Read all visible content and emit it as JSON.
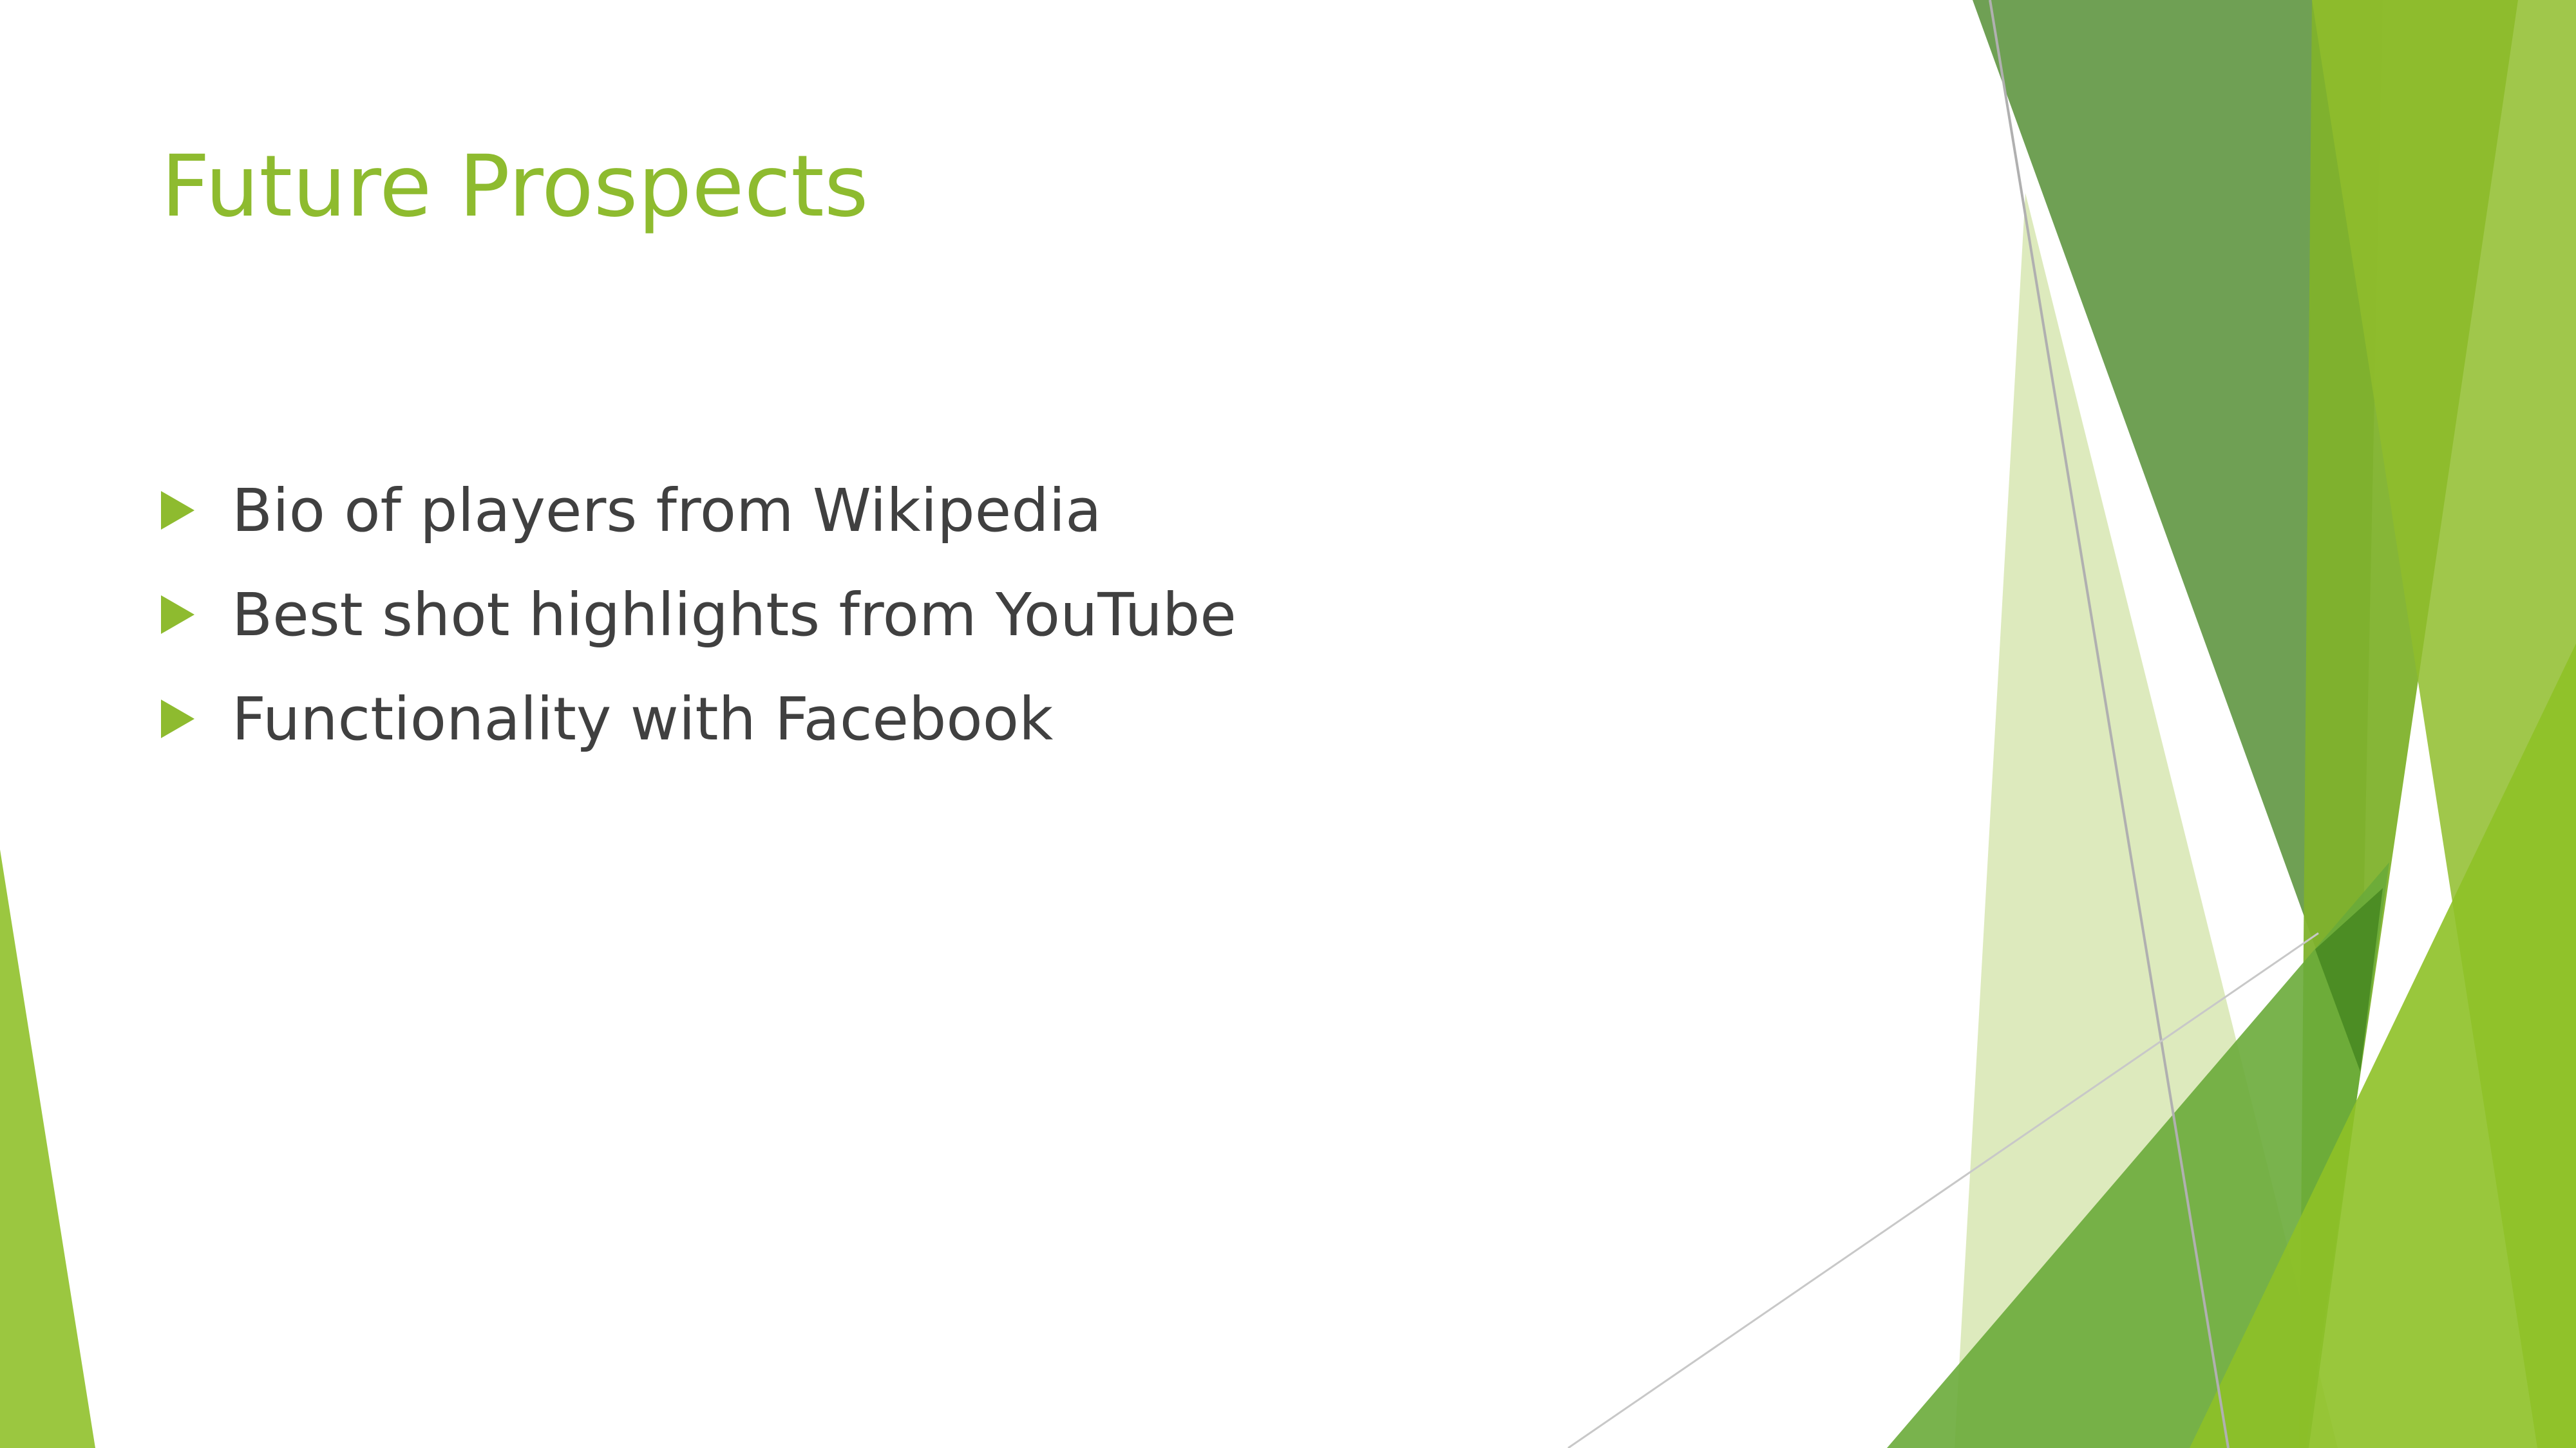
{
  "slide": {
    "title": "Future Prospects",
    "bullets": [
      "Bio of players from Wikipedia",
      "Best shot highlights from YouTube",
      "Functionality with Facebook"
    ]
  },
  "colors": {
    "title": "#8ebb2f",
    "body_text": "#404040",
    "accent_light": "#a0c844",
    "accent_mid": "#6e9f44",
    "accent_dark": "#4c8d24",
    "accent_pale": "#dde9bc"
  },
  "icons": {
    "bullet": "triangle-right-icon"
  }
}
